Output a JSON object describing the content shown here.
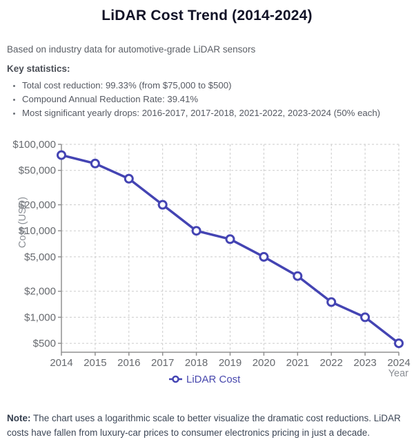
{
  "header": {
    "title": "LiDAR Cost Trend (2014-2024)",
    "subtitle": "Based on industry data for automotive-grade LiDAR sensors"
  },
  "key_statistics": {
    "heading": "Key statistics:",
    "items": [
      "Total cost reduction: 99.33% (from $75,000 to $500)",
      "Compound Annual Reduction Rate: 39.41%",
      "Most significant yearly drops: 2016-2017, 2017-2018, 2021-2022, 2023-2024 (50% each)"
    ]
  },
  "chart_data": {
    "type": "line",
    "x": [
      2014,
      2015,
      2016,
      2017,
      2018,
      2019,
      2020,
      2021,
      2022,
      2023,
      2024
    ],
    "series": [
      {
        "name": "LiDAR Cost",
        "values": [
          75000,
          60000,
          40000,
          20000,
          10000,
          8000,
          5000,
          3000,
          1500,
          1000,
          500
        ]
      }
    ],
    "y_scale": "log",
    "ylim": [
      500,
      100000
    ],
    "y_ticks": [
      100000,
      50000,
      20000,
      10000,
      5000,
      2000,
      1000,
      500
    ],
    "y_tick_labels": [
      "$100,000",
      "$50,000",
      "$20,000",
      "$10,000",
      "$5,000",
      "$2,000",
      "$1,000",
      "$500"
    ],
    "xlabel": "Year",
    "ylabel": "Cost (USD)",
    "legend": {
      "label": "LiDAR Cost",
      "position": "bottom"
    },
    "grid": true,
    "marker": "open-circle",
    "colors": {
      "line": "#4444b3",
      "marker_fill": "#ffffff",
      "grid": "#cbcbcb",
      "axis": "#909090",
      "tick_label": "#66696e",
      "axis_title": "#8b8f95",
      "legend_text": "#4747ad"
    }
  },
  "note": {
    "label": "Note:",
    "line1": "The chart uses a logarithmic scale to better visualize the dramatic cost reductions. LiDAR",
    "line2": "costs have fallen from luxury-car prices to consumer electronics pricing in just a decade."
  }
}
